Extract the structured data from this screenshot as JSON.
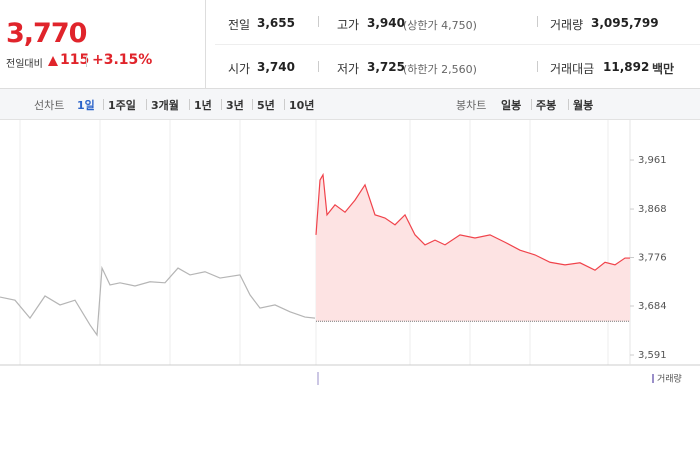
{
  "header": {
    "price": "3,770",
    "change_label": "전일대비",
    "change": "115",
    "change_pct": "+3.15%",
    "stats": [
      {
        "label": "전일",
        "value": "3,655"
      },
      {
        "label": "고가",
        "value": "3,940",
        "extra": "(상한가 4,750)"
      },
      {
        "label": "거래량",
        "value": "3,095,799"
      },
      {
        "label": "시가",
        "value": "3,740"
      },
      {
        "label": "저가",
        "value": "3,725",
        "extra": "(하한가 2,560)"
      },
      {
        "label": "거래대금",
        "value": "11,892",
        "unit": "백만"
      }
    ]
  },
  "tabs": {
    "line_label": "선차트",
    "periods": [
      "1일",
      "1주일",
      "3개월",
      "1년",
      "3년",
      "5년",
      "10년"
    ],
    "candle_label": "봉차트",
    "candles": [
      "일봉",
      "주봉",
      "월봉"
    ]
  },
  "chart_data": {
    "type": "line",
    "x": [
      0,
      15,
      30,
      45,
      60,
      75,
      90,
      97,
      102,
      110,
      120,
      135,
      150,
      165,
      178,
      190,
      205,
      220,
      240,
      250,
      260,
      275,
      290,
      305,
      315,
      316,
      320,
      323,
      327,
      335,
      345,
      355,
      365,
      375,
      385,
      395,
      405,
      415,
      425,
      435,
      445,
      460,
      475,
      490,
      505,
      520,
      535,
      550,
      565,
      580,
      595,
      605,
      615,
      625,
      630
    ],
    "series": [
      {
        "color": "#b5b5b5",
        "values": [
          3701,
          3695,
          3661,
          3703,
          3686,
          3695,
          3648,
          3629,
          3756,
          3724,
          3728,
          3722,
          3730,
          3728,
          3756,
          3743,
          3749,
          3737,
          3743,
          3705,
          3680,
          3686,
          3673,
          3663,
          3661,
          null,
          null,
          null,
          null,
          null,
          null,
          null,
          null,
          null,
          null,
          null,
          null,
          null,
          null,
          null,
          null,
          null,
          null,
          null,
          null,
          null,
          null,
          null,
          null,
          null,
          null,
          null,
          null,
          null,
          null
        ]
      },
      {
        "color": "#f0434b",
        "fill": "#fde3e3",
        "values": [
          null,
          null,
          null,
          null,
          null,
          null,
          null,
          null,
          null,
          null,
          null,
          null,
          null,
          null,
          null,
          null,
          null,
          null,
          null,
          null,
          null,
          null,
          null,
          null,
          null,
          3819,
          3923,
          3933,
          3857,
          3876,
          3862,
          3885,
          3914,
          3857,
          3851,
          3838,
          3857,
          3819,
          3800,
          3809,
          3800,
          3819,
          3813,
          3819,
          3805,
          3790,
          3781,
          3767,
          3762,
          3766,
          3752,
          3767,
          3762,
          3775,
          3775
        ]
      }
    ],
    "baseline": 3655,
    "xlim": [
      0,
      630
    ],
    "ylim": [
      3572,
      4037
    ],
    "yticks": [
      {
        "value": 3591,
        "label": "3,591"
      },
      {
        "value": 3684,
        "label": "3,684"
      },
      {
        "value": 3776,
        "label": "3,776"
      },
      {
        "value": 3868,
        "label": "3,868"
      },
      {
        "value": 3961,
        "label": "3,961"
      }
    ],
    "legend_label": "거래량"
  }
}
